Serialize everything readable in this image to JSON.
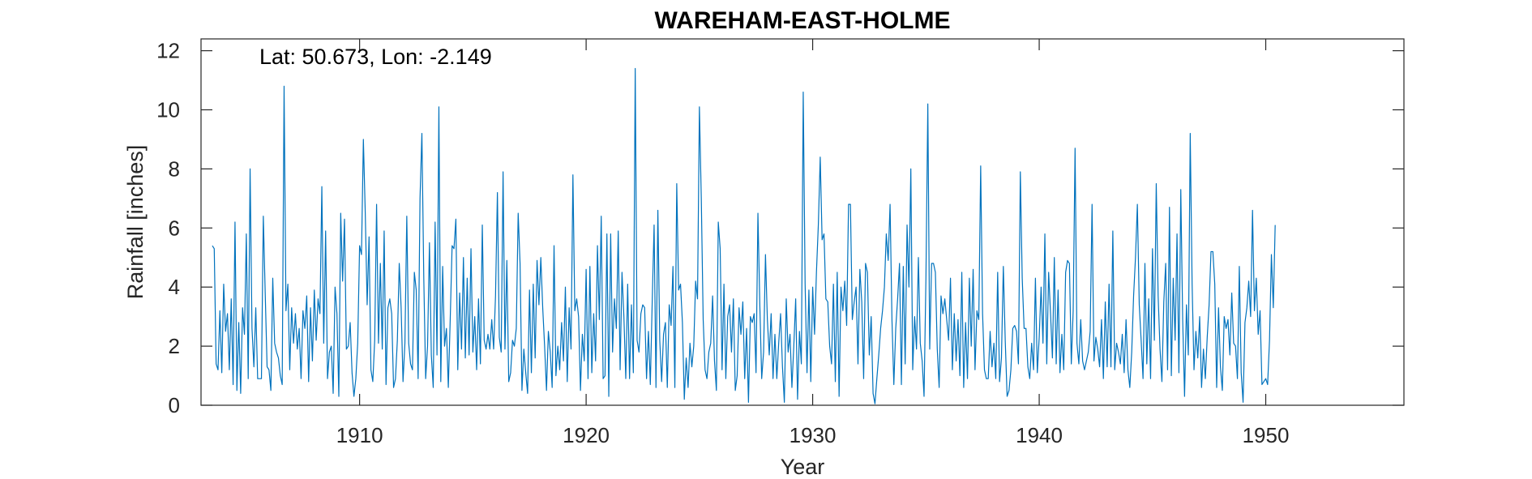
{
  "chart_data": {
    "type": "line",
    "title": "WAREHAM-EAST-HOLME",
    "annotation": "Lat: 50.673, Lon: -2.149",
    "xlabel": "Year",
    "ylabel": "Rainfall [inches]",
    "xlim": [
      1903.0,
      1956.1
    ],
    "ylim": [
      0,
      12.4
    ],
    "xticks": [
      1910,
      1920,
      1930,
      1940,
      1950
    ],
    "yticks": [
      0,
      2,
      4,
      6,
      8,
      10,
      12
    ],
    "grid": false,
    "line_color": "#0072BD",
    "series": [
      {
        "x_start": 1903.5,
        "x_step": 0.0833333,
        "values": [
          5.4,
          5.3,
          1.4,
          1.2,
          3.2,
          1.1,
          4.1,
          2.5,
          3.1,
          1.2,
          3.6,
          0.7,
          6.2,
          0.5,
          2.8,
          0.4,
          3.3,
          2.4,
          5.8,
          0.9,
          8.0,
          2.6,
          1.3,
          3.3,
          0.9,
          0.9,
          0.9,
          6.4,
          3.8,
          1.3,
          1.2,
          0.5,
          4.3,
          2.1,
          1.8,
          1.6,
          1.0,
          0.7,
          10.8,
          3.2,
          4.1,
          1.2,
          3.3,
          2.1,
          3.1,
          1.9,
          2.6,
          0.9,
          3.2,
          2.6,
          3.7,
          0.8,
          3.3,
          1.5,
          3.9,
          2.2,
          3.6,
          3.1,
          7.4,
          2.1,
          5.9,
          0.9,
          1.8,
          2.0,
          0.4,
          4.0,
          3.1,
          0.3,
          6.5,
          4.2,
          6.3,
          1.9,
          2.0,
          2.8,
          1.1,
          0.3,
          0.9,
          2.1,
          5.4,
          5.1,
          9.0,
          6.5,
          3.4,
          5.7,
          1.2,
          0.8,
          2.2,
          6.8,
          2.1,
          4.8,
          1.9,
          5.9,
          0.7,
          3.3,
          3.6,
          3.1,
          0.6,
          0.9,
          2.2,
          4.8,
          3.3,
          0.8,
          2.1,
          6.4,
          2.1,
          1.4,
          1.2,
          4.5,
          3.9,
          0.9,
          7.0,
          9.2,
          4.3,
          0.9,
          2.0,
          5.5,
          1.7,
          0.6,
          6.2,
          1.7,
          10.1,
          0.8,
          4.7,
          2.0,
          2.6,
          0.6,
          2.9,
          5.4,
          5.3,
          6.3,
          1.2,
          3.8,
          1.9,
          5.0,
          1.6,
          4.3,
          1.7,
          5.3,
          1.8,
          3.0,
          1.2,
          3.6,
          1.4,
          6.1,
          2.2,
          1.9,
          2.4,
          1.9,
          2.9,
          1.9,
          3.7,
          7.2,
          2.3,
          1.8,
          7.9,
          1.9,
          4.9,
          0.8,
          1.1,
          2.2,
          2.0,
          2.6,
          6.5,
          4.8,
          0.5,
          1.9,
          1.1,
          0.4,
          3.9,
          1.1,
          4.1,
          1.6,
          4.9,
          3.4,
          5.0,
          3.3,
          2.0,
          0.5,
          2.5,
          1.8,
          0.6,
          5.4,
          1.0,
          2.0,
          1.2,
          2.8,
          1.5,
          4.0,
          0.8,
          3.3,
          1.9,
          7.8,
          3.2,
          3.6,
          3.0,
          0.5,
          2.4,
          1.5,
          4.6,
          0.9,
          4.7,
          1.1,
          3.1,
          1.5,
          5.4,
          2.9,
          6.4,
          0.9,
          1.0,
          5.8,
          0.3,
          5.8,
          1.8,
          3.6,
          2.6,
          5.9,
          1.2,
          4.5,
          3.0,
          0.9,
          4.1,
          0.9,
          3.4,
          1.1,
          11.4,
          2.2,
          1.8,
          3.1,
          3.4,
          3.3,
          0.9,
          2.5,
          0.7,
          3.5,
          6.1,
          0.6,
          6.6,
          2.2,
          0.8,
          2.4,
          2.8,
          0.6,
          3.4,
          2.7,
          4.7,
          0.6,
          7.5,
          3.9,
          4.1,
          2.8,
          0.2,
          1.6,
          0.6,
          2.1,
          1.3,
          2.0,
          4.2,
          3.6,
          10.1,
          7.0,
          2.9,
          1.2,
          0.9,
          1.8,
          2.1,
          3.7,
          1.5,
          0.5,
          6.2,
          5.3,
          1.2,
          4.1,
          0.9,
          3.0,
          3.4,
          1.8,
          3.6,
          0.5,
          1.0,
          3.3,
          2.4,
          3.5,
          0.9,
          2.6,
          0.1,
          3.0,
          2.8,
          3.1,
          1.1,
          6.5,
          3.4,
          0.9,
          1.8,
          5.1,
          2.9,
          1.7,
          3.1,
          0.9,
          2.4,
          0.9,
          2.1,
          3.1,
          1.3,
          0.1,
          3.6,
          1.8,
          2.4,
          0.6,
          2.0,
          3.6,
          0.2,
          2.5,
          1.4,
          10.6,
          4.1,
          1.1,
          3.9,
          0.8,
          4.0,
          2.4,
          4.5,
          6.1,
          8.4,
          5.6,
          5.8,
          3.6,
          3.5,
          2.0,
          1.4,
          4.1,
          0.8,
          4.5,
          0.3,
          4.0,
          3.2,
          4.2,
          2.7,
          6.8,
          6.8,
          2.9,
          3.5,
          4.0,
          1.4,
          4.6,
          3.5,
          0.9,
          4.8,
          4.5,
          1.7,
          3.0,
          0.4,
          0.05,
          0.9,
          1.7,
          2.6,
          3.2,
          4.0,
          5.8,
          4.9,
          6.8,
          2.9,
          0.7,
          2.6,
          3.6,
          4.8,
          0.7,
          4.7,
          1.4,
          6.1,
          4.0,
          8.0,
          1.2,
          3.0,
          1.9,
          5.0,
          2.1,
          1.5,
          0.3,
          4.3,
          10.2,
          1.9,
          4.8,
          4.8,
          4.5,
          1.9,
          0.6,
          3.7,
          3.1,
          3.6,
          2.9,
          2.2,
          4.3,
          1.2,
          3.1,
          1.5,
          2.9,
          1.0,
          4.5,
          0.6,
          2.8,
          0.9,
          4.3,
          2.0,
          4.6,
          1.2,
          3.2,
          2.9,
          8.1,
          3.1,
          1.2,
          0.9,
          0.9,
          2.5,
          1.3,
          2.1,
          0.9,
          4.5,
          0.8,
          1.6,
          4.7,
          2.2,
          0.3,
          0.5,
          1.2,
          2.6,
          2.7,
          2.5,
          1.4,
          7.9,
          4.3,
          2.6,
          2.6,
          1.3,
          0.9,
          2.1,
          1.2,
          4.3,
          1.1,
          2.3,
          4.0,
          2.1,
          5.8,
          1.4,
          4.5,
          3.1,
          1.6,
          5.0,
          1.4,
          3.9,
          1.1,
          2.4,
          1.2,
          4.5,
          4.9,
          4.8,
          1.4,
          3.2,
          8.7,
          2.1,
          1.4,
          2.9,
          1.5,
          1.2,
          1.5,
          1.8,
          2.5,
          6.8,
          1.5,
          2.3,
          1.9,
          1.3,
          2.9,
          0.9,
          3.5,
          1.3,
          4.1,
          1.3,
          5.9,
          1.2,
          2.1,
          1.8,
          1.4,
          2.4,
          1.1,
          2.9,
          1.2,
          0.6,
          1.8,
          3.7,
          5.0,
          6.8,
          3.4,
          2.2,
          0.9,
          4.8,
          1.4,
          3.6,
          0.9,
          5.3,
          2.2,
          7.5,
          3.7,
          1.9,
          0.8,
          3.5,
          4.8,
          1.2,
          6.7,
          1.0,
          4.3,
          2.2,
          5.8,
          1.1,
          7.3,
          2.9,
          0.3,
          3.4,
          1.7,
          9.2,
          4.1,
          1.2,
          2.5,
          1.6,
          3.0,
          0.6,
          1.9,
          0.9,
          2.3,
          3.4,
          5.2,
          5.2,
          4.1,
          0.6,
          3.3,
          1.3,
          0.5,
          3.0,
          2.6,
          2.9,
          1.7,
          3.8,
          2.1,
          2.0,
          0.9,
          4.7,
          1.1,
          0.1,
          2.8,
          3.3,
          4.2,
          3.0,
          6.6,
          3.2,
          4.3,
          2.4,
          3.2,
          0.7,
          0.8,
          0.9,
          0.7,
          2.2,
          5.1,
          3.3,
          6.1
        ]
      }
    ]
  }
}
